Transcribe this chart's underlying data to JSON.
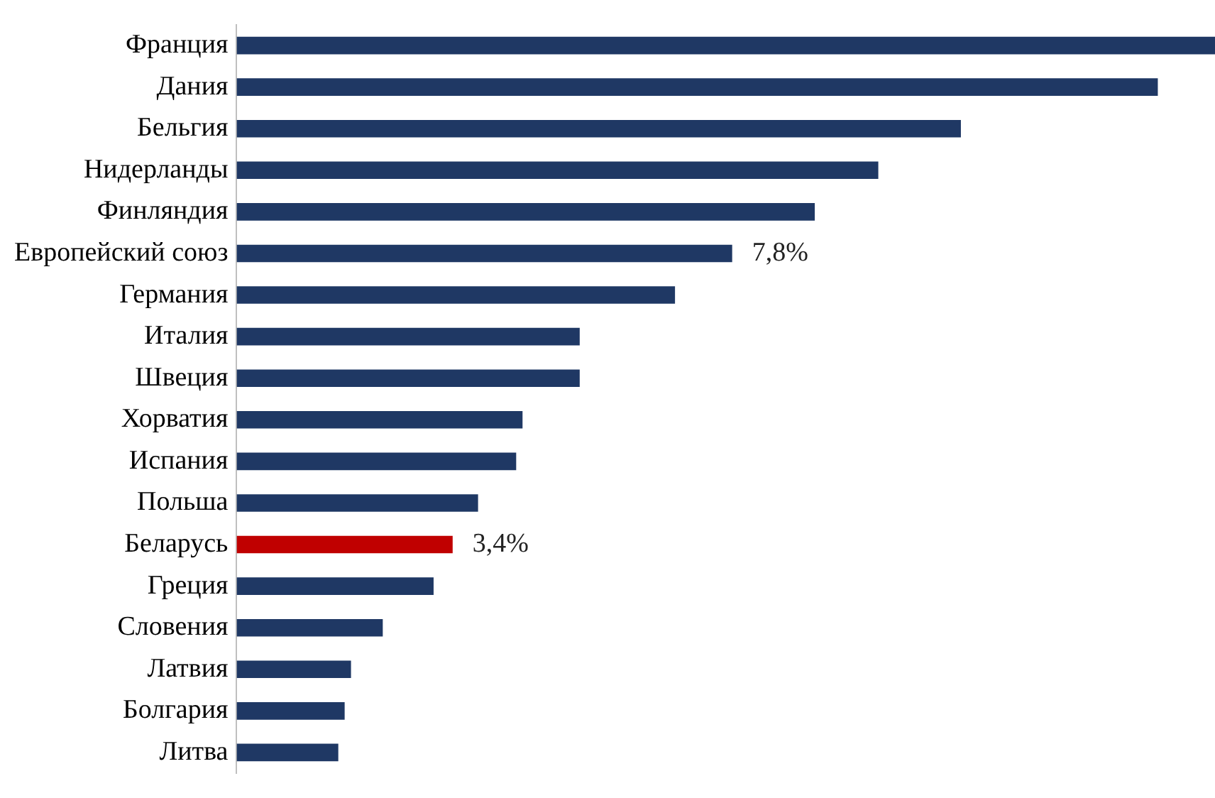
{
  "chart_data": {
    "type": "bar",
    "orientation": "horizontal",
    "tick_labels": "y",
    "grid": false,
    "legend": false,
    "categories": [
      "Франция",
      "Дания",
      "Бельгия",
      "Нидерланды",
      "Финляндия",
      "Европейский союз",
      "Германия",
      "Италия",
      "Швеция",
      "Хорватия",
      "Испания",
      "Польша",
      "Беларусь",
      "Греция",
      "Словения",
      "Латвия",
      "Болгария",
      "Литва"
    ],
    "values": [
      15.4,
      14.5,
      11.4,
      10.1,
      9.1,
      7.8,
      6.9,
      5.4,
      5.4,
      4.5,
      4.4,
      3.8,
      3.4,
      3.1,
      2.3,
      1.8,
      1.7,
      1.6
    ],
    "colors": [
      "#1f3864",
      "#1f3864",
      "#1f3864",
      "#1f3864",
      "#1f3864",
      "#1f3864",
      "#1f3864",
      "#1f3864",
      "#1f3864",
      "#1f3864",
      "#1f3864",
      "#1f3864",
      "#c00000",
      "#1f3864",
      "#1f3864",
      "#1f3864",
      "#1f3864",
      "#1f3864"
    ],
    "value_labels": [
      null,
      null,
      null,
      null,
      null,
      "7,8%",
      null,
      null,
      null,
      null,
      null,
      null,
      "3,4%",
      null,
      null,
      null,
      null,
      null
    ]
  }
}
